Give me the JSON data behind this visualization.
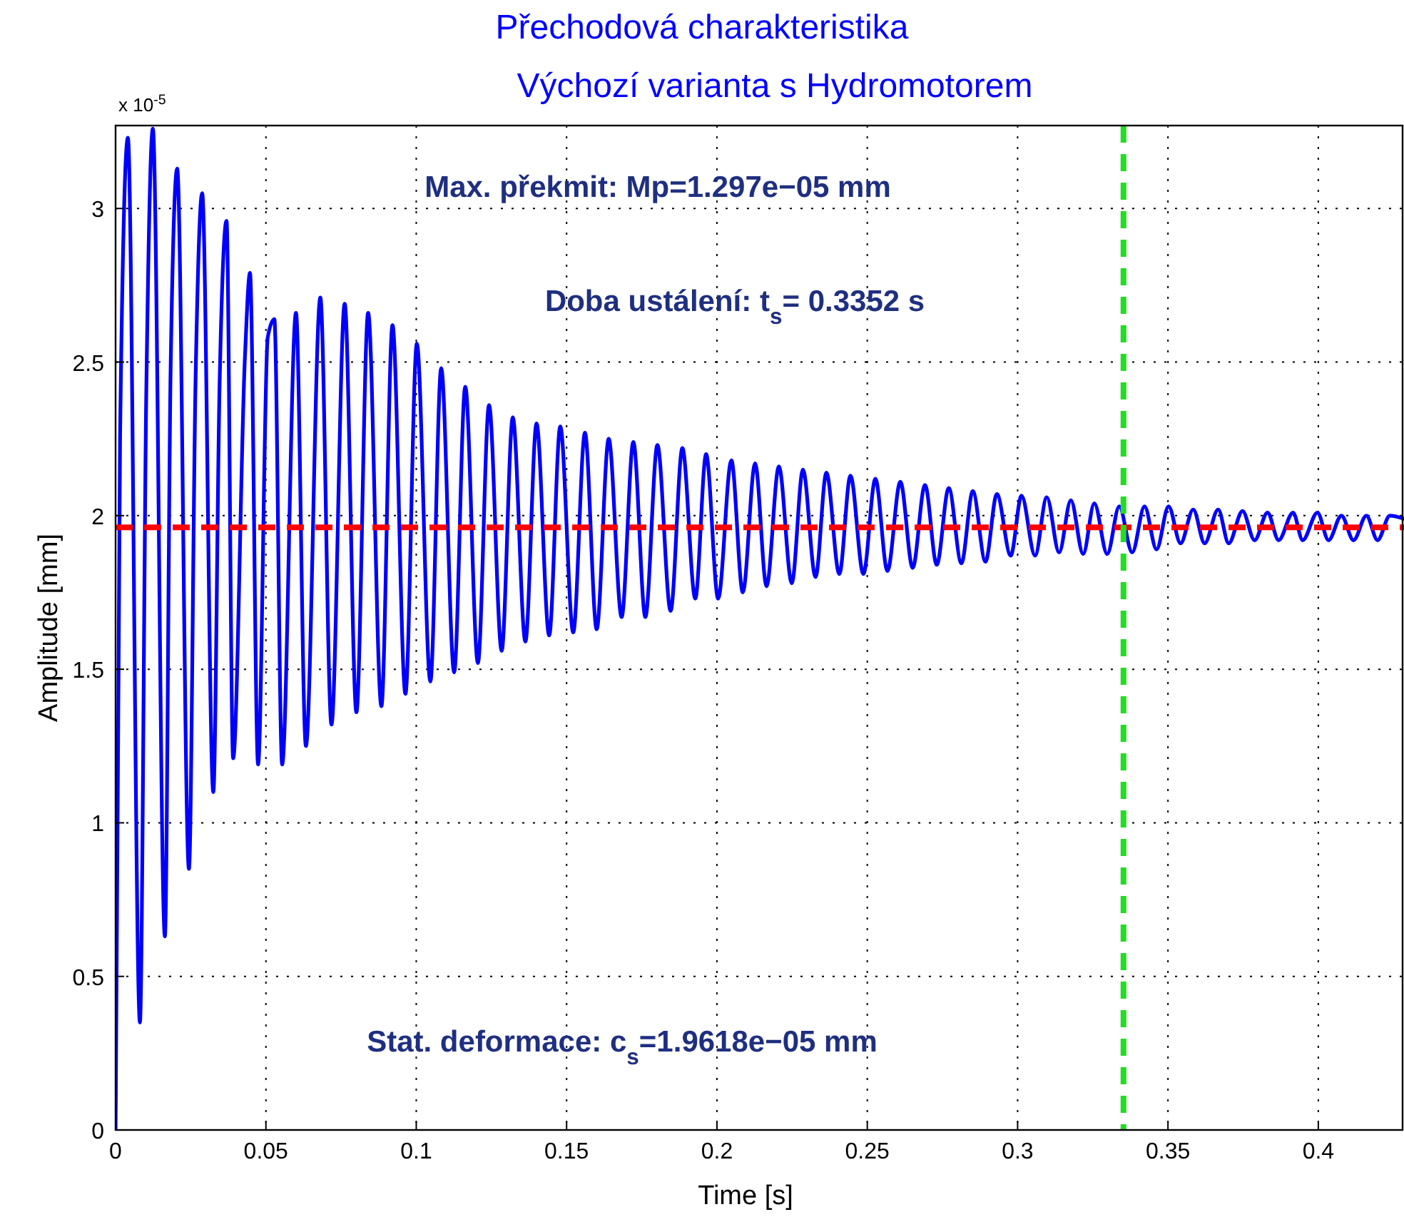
{
  "chart_data": {
    "type": "line",
    "title": "Přechodová charakteristika",
    "subtitle": "Výchozí varianta s Hydromotorem",
    "xlabel": "Time [s]",
    "ylabel": "Amplitude  [mm]",
    "xlim": [
      0,
      0.4285
    ],
    "ylim": [
      0,
      3.27
    ],
    "xticks": [
      0,
      0.05,
      0.1,
      0.15,
      0.2,
      0.25,
      0.3,
      0.35,
      0.4
    ],
    "yticks": [
      0,
      0.5,
      1,
      1.5,
      2,
      2.5,
      3
    ],
    "grid": true,
    "line_style": "solid",
    "marker": "none",
    "series": [
      {
        "color": "#0000ff",
        "x": [
          0,
          0.0015,
          0.0041,
          0.0081,
          0.0102,
          0.0124,
          0.0164,
          0.0183,
          0.0205,
          0.0244,
          0.0266,
          0.0288,
          0.0325,
          0.0346,
          0.0369,
          0.0391,
          0.043,
          0.0447,
          0.0474,
          0.0506,
          0.0528,
          0.0554,
          0.06,
          0.0633,
          0.0681,
          0.0718,
          0.0762,
          0.0801,
          0.084,
          0.0884,
          0.0921,
          0.0964,
          0.1002,
          0.1047,
          0.1083,
          0.1126,
          0.1163,
          0.1205,
          0.1242,
          0.1284,
          0.1321,
          0.1363,
          0.14,
          0.1442,
          0.1479,
          0.1522,
          0.1561,
          0.16,
          0.164,
          0.1683,
          0.1722,
          0.1762,
          0.1802,
          0.1846,
          0.1885,
          0.1928,
          0.1964,
          0.2004,
          0.2048,
          0.2086,
          0.2127,
          0.2165,
          0.2206,
          0.2249,
          0.2286,
          0.2328,
          0.2364,
          0.2407,
          0.2444,
          0.2487,
          0.2527,
          0.2567,
          0.261,
          0.2651,
          0.2692,
          0.2731,
          0.2771,
          0.2813,
          0.2851,
          0.2893,
          0.2931,
          0.2977,
          0.3013,
          0.3058,
          0.3097,
          0.3138,
          0.3177,
          0.3218,
          0.3255,
          0.3298,
          0.3338,
          0.3381,
          0.3422,
          0.3462,
          0.3502,
          0.3542,
          0.3584,
          0.3622,
          0.3667,
          0.3702,
          0.3748,
          0.3788,
          0.3831,
          0.3868,
          0.3916,
          0.3948,
          0.3997,
          0.4034,
          0.4077,
          0.4117,
          0.416,
          0.4197,
          0.4238,
          0.4284
        ],
        "values": [
          0,
          2.26,
          3.23,
          0.35,
          2.39,
          3.26,
          0.63,
          2.47,
          3.13,
          0.85,
          2.44,
          3.05,
          1.1,
          2.43,
          2.96,
          1.21,
          2.51,
          2.79,
          1.19,
          2.58,
          2.64,
          1.19,
          2.66,
          1.25,
          2.71,
          1.32,
          2.69,
          1.36,
          2.66,
          1.38,
          2.62,
          1.42,
          2.56,
          1.46,
          2.48,
          1.49,
          2.42,
          1.52,
          2.36,
          1.56,
          2.32,
          1.59,
          2.3,
          1.61,
          2.29,
          1.62,
          2.27,
          1.63,
          2.25,
          1.67,
          2.24,
          1.67,
          2.23,
          1.69,
          2.22,
          1.73,
          2.2,
          1.73,
          2.18,
          1.75,
          2.17,
          1.77,
          2.16,
          1.78,
          2.15,
          1.8,
          2.14,
          1.81,
          2.13,
          1.81,
          2.12,
          1.82,
          2.11,
          1.83,
          2.1,
          1.84,
          2.09,
          1.845,
          2.08,
          1.85,
          2.07,
          1.87,
          2.065,
          1.87,
          2.06,
          1.88,
          2.05,
          1.875,
          2.04,
          1.875,
          2.03,
          1.88,
          2.03,
          1.89,
          2.03,
          1.91,
          2.02,
          1.91,
          2.02,
          1.91,
          2.015,
          1.92,
          2.01,
          1.92,
          2.01,
          1.92,
          2.01,
          1.92,
          2,
          1.92,
          2,
          1.92,
          2,
          1.99
        ]
      }
    ],
    "ref_lines": [
      {
        "axis": "y",
        "value": 1.9618,
        "color": "#ff0000",
        "line_style": "dashed"
      },
      {
        "axis": "x",
        "value": 0.3352,
        "color": "#22dd22",
        "line_style": "dashed"
      }
    ],
    "annotations": [
      "x 10$^{-5}$",
      "Max. překmit: Mp=1.297e−05 mm",
      "Doba ustálení: t$_{s}$= 0.3352 s",
      "Stat. deformace: c$_{s}$=1.9618e−05 mm"
    ]
  }
}
